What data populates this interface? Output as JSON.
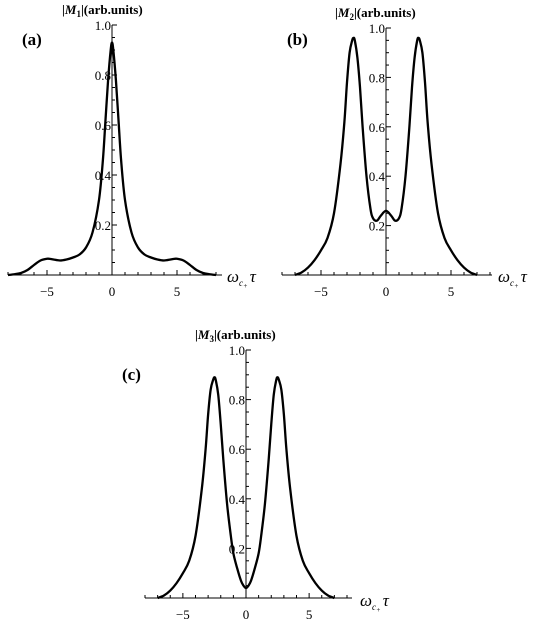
{
  "chart_data": [
    {
      "type": "line",
      "panel_label": "(a)",
      "ylabel_sym": "M",
      "ylabel_sub": "1",
      "ylabel_units": "(arb.units)",
      "xlabel_sym": "ω",
      "xlabel_sub": "c",
      "xlabel_subsub": "+",
      "xlabel_tau": "τ",
      "xlim": [
        -8,
        8
      ],
      "ylim": [
        0,
        1.0
      ],
      "xticks": [
        -5,
        0,
        5
      ],
      "yticks": [
        0.2,
        0.4,
        0.6,
        0.8,
        1.0
      ],
      "xtick_labels": [
        "−5",
        "0",
        "5"
      ],
      "ytick_labels": [
        "0.2",
        "0.4",
        "0.6",
        "0.8",
        "1.0"
      ],
      "series": [
        {
          "x": [
            -8,
            -7.5,
            -7,
            -6.5,
            -6,
            -5.5,
            -5,
            -4.7,
            -4.5,
            -4,
            -3.5,
            -3,
            -2.5,
            -2,
            -1.5,
            -1,
            -0.7,
            -0.5,
            -0.3,
            -0.1,
            0,
            0.1,
            0.3,
            0.5,
            0.7,
            1,
            1.5,
            2,
            2.5,
            3,
            3.5,
            4,
            4.5,
            4.7,
            5,
            5.5,
            6,
            6.5,
            7,
            7.5,
            8
          ],
          "y": [
            0.0,
            0.003,
            0.008,
            0.02,
            0.04,
            0.058,
            0.065,
            0.064,
            0.062,
            0.058,
            0.062,
            0.07,
            0.082,
            0.11,
            0.17,
            0.3,
            0.46,
            0.62,
            0.78,
            0.9,
            0.93,
            0.9,
            0.78,
            0.62,
            0.46,
            0.3,
            0.17,
            0.11,
            0.082,
            0.07,
            0.062,
            0.058,
            0.062,
            0.064,
            0.065,
            0.058,
            0.04,
            0.02,
            0.008,
            0.003,
            0.0
          ]
        }
      ]
    },
    {
      "type": "line",
      "panel_label": "(b)",
      "ylabel_sym": "M",
      "ylabel_sub": "2",
      "ylabel_units": "(arb.units)",
      "xlabel_sym": "ω",
      "xlabel_sub": "c",
      "xlabel_subsub": "+",
      "xlabel_tau": "τ",
      "xlim": [
        -8,
        8
      ],
      "ylim": [
        0,
        1.0
      ],
      "xticks": [
        -5,
        0,
        5
      ],
      "yticks": [
        0.2,
        0.4,
        0.6,
        0.8,
        1.0
      ],
      "xtick_labels": [
        "−5",
        "0",
        "5"
      ],
      "ytick_labels": [
        "0.2",
        "0.4",
        "0.6",
        "0.8",
        "1.0"
      ],
      "series": [
        {
          "x": [
            -7,
            -6.5,
            -6,
            -5.5,
            -5,
            -4.5,
            -4,
            -3.5,
            -3.2,
            -3,
            -2.8,
            -2.6,
            -2.5,
            -2.4,
            -2.2,
            -2,
            -1.8,
            -1.5,
            -1.2,
            -1,
            -0.7,
            -0.4,
            0,
            0.4,
            0.7,
            1,
            1.2,
            1.5,
            1.8,
            2,
            2.2,
            2.4,
            2.5,
            2.6,
            2.8,
            3,
            3.2,
            3.5,
            4,
            4.5,
            5,
            5.5,
            6,
            6.5,
            7
          ],
          "y": [
            0.0,
            0.01,
            0.03,
            0.06,
            0.1,
            0.15,
            0.25,
            0.45,
            0.62,
            0.78,
            0.9,
            0.95,
            0.96,
            0.95,
            0.88,
            0.76,
            0.6,
            0.4,
            0.27,
            0.23,
            0.22,
            0.24,
            0.26,
            0.24,
            0.22,
            0.23,
            0.27,
            0.4,
            0.6,
            0.76,
            0.88,
            0.95,
            0.96,
            0.95,
            0.9,
            0.78,
            0.62,
            0.45,
            0.25,
            0.15,
            0.1,
            0.06,
            0.03,
            0.01,
            0.0
          ]
        }
      ]
    },
    {
      "type": "line",
      "panel_label": "(c)",
      "ylabel_sym": "M",
      "ylabel_sub": "3",
      "ylabel_units": "(arb.units)",
      "xlabel_sym": "ω",
      "xlabel_sub": "c",
      "xlabel_subsub": "+",
      "xlabel_tau": "τ",
      "xlim": [
        -8,
        8
      ],
      "ylim": [
        0,
        1.0
      ],
      "xticks": [
        -5,
        0,
        5
      ],
      "yticks": [
        0.2,
        0.4,
        0.6,
        0.8,
        1.0
      ],
      "xtick_labels": [
        "−5",
        "0",
        "5"
      ],
      "ytick_labels": [
        "0.2",
        "0.4",
        "0.6",
        "0.8",
        "1.0"
      ],
      "series": [
        {
          "x": [
            -7,
            -6.5,
            -6,
            -5.5,
            -5,
            -4.5,
            -4,
            -3.5,
            -3.2,
            -3,
            -2.8,
            -2.6,
            -2.5,
            -2.4,
            -2.2,
            -2,
            -1.8,
            -1.5,
            -1.2,
            -1,
            -0.7,
            -0.4,
            -0.2,
            0,
            0.2,
            0.4,
            0.7,
            1,
            1.2,
            1.5,
            1.8,
            2,
            2.2,
            2.4,
            2.5,
            2.6,
            2.8,
            3,
            3.2,
            3.5,
            4,
            4.5,
            5,
            5.5,
            6,
            6.5,
            7
          ],
          "y": [
            0.0,
            0.01,
            0.03,
            0.06,
            0.1,
            0.15,
            0.25,
            0.44,
            0.6,
            0.74,
            0.84,
            0.88,
            0.89,
            0.88,
            0.82,
            0.7,
            0.56,
            0.38,
            0.25,
            0.18,
            0.12,
            0.07,
            0.05,
            0.04,
            0.05,
            0.07,
            0.12,
            0.18,
            0.25,
            0.38,
            0.56,
            0.7,
            0.82,
            0.88,
            0.89,
            0.88,
            0.84,
            0.74,
            0.6,
            0.44,
            0.25,
            0.15,
            0.1,
            0.06,
            0.03,
            0.01,
            0.0
          ]
        }
      ]
    }
  ]
}
